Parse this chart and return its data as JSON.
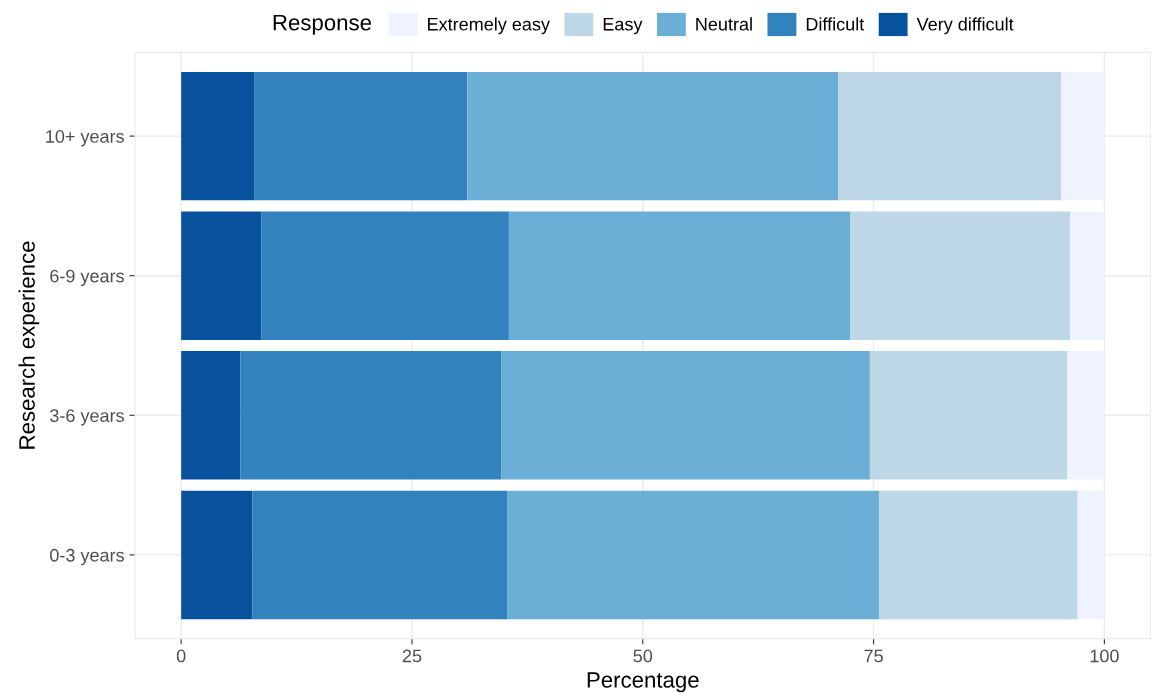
{
  "chart_data": {
    "type": "bar",
    "orientation": "horizontal",
    "stacked": true,
    "xlabel": "Percentage",
    "ylabel": "Research experience",
    "legend_title": "Response",
    "categories": [
      "10+ years",
      "6-9 years",
      "3-6 years",
      "0-3 years"
    ],
    "series": [
      {
        "name": "Very difficult",
        "color": "#08519c",
        "values": [
          7.9,
          8.7,
          6.4,
          7.7
        ]
      },
      {
        "name": "Difficult",
        "color": "#3182bd",
        "values": [
          23.1,
          26.8,
          28.3,
          27.6
        ]
      },
      {
        "name": "Neutral",
        "color": "#6baed6",
        "values": [
          40.2,
          37.0,
          39.9,
          40.3
        ]
      },
      {
        "name": "Easy",
        "color": "#bdd7e7",
        "values": [
          24.1,
          23.8,
          21.4,
          21.5
        ]
      },
      {
        "name": "Extremely easy",
        "color": "#eff3ff",
        "values": [
          4.7,
          3.7,
          4.0,
          2.9
        ]
      }
    ],
    "xlim": [
      -5,
      105
    ],
    "xticks": [
      0,
      25,
      50,
      75,
      100
    ],
    "grid": true,
    "legend": "top"
  }
}
